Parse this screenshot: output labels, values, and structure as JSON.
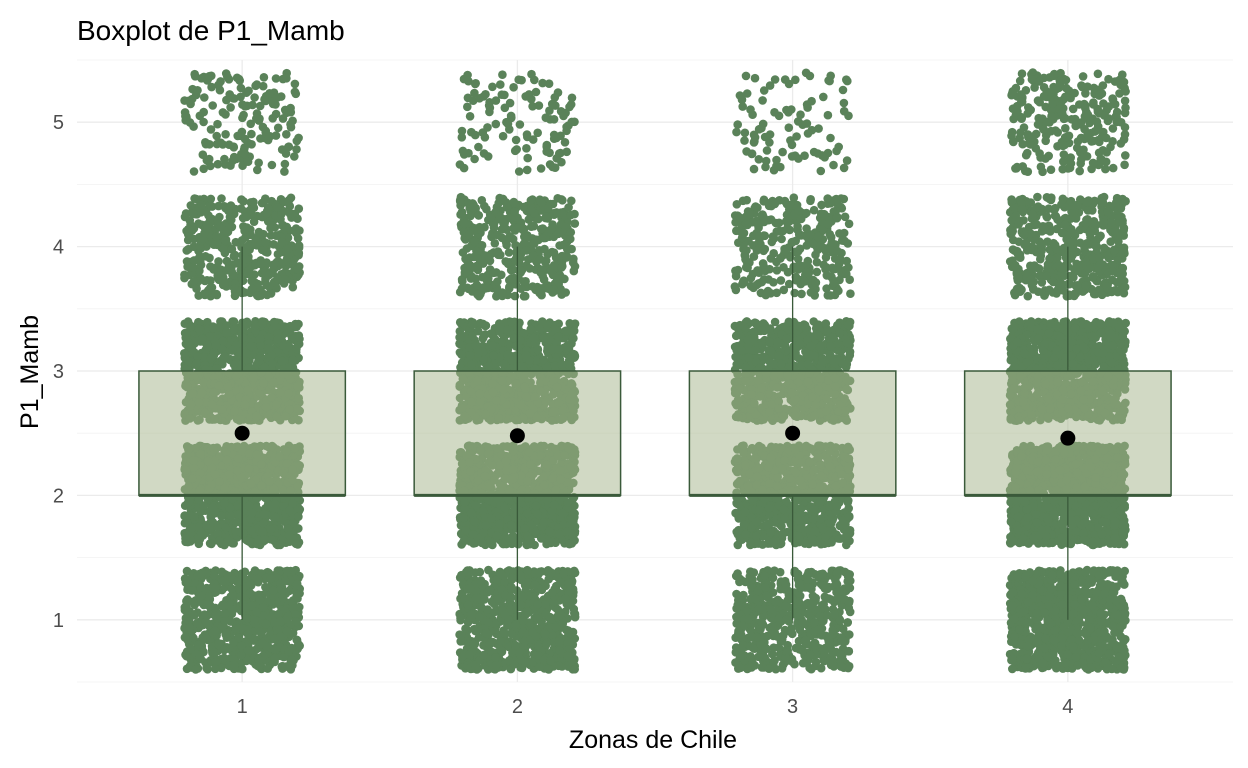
{
  "chart_data": {
    "type": "boxplot",
    "title": "Boxplot de P1_Mamb",
    "xlabel": "Zonas de Chile",
    "ylabel": "P1_Mamb",
    "categories": [
      "1",
      "2",
      "3",
      "4"
    ],
    "yticks": [
      "1",
      "2",
      "3",
      "4",
      "5"
    ],
    "ylim": [
      0.5,
      5.5
    ],
    "grid": true,
    "legend": "none",
    "jitter_levels": [
      1,
      2,
      3,
      4,
      5
    ],
    "boxes": [
      {
        "category": "1",
        "lower_whisker": 1,
        "q1": 2,
        "median": 2,
        "q3": 3,
        "upper_whisker": 4,
        "mean": 2.5,
        "level_counts": [
          700,
          1000,
          900,
          420,
          160
        ]
      },
      {
        "category": "2",
        "lower_whisker": 1,
        "q1": 2,
        "median": 2,
        "q3": 3,
        "upper_whisker": 4,
        "mean": 2.48,
        "level_counts": [
          700,
          1000,
          900,
          420,
          110
        ]
      },
      {
        "category": "3",
        "lower_whisker": 1,
        "q1": 2,
        "median": 2,
        "q3": 3,
        "upper_whisker": 4,
        "mean": 2.5,
        "level_counts": [
          520,
          800,
          760,
          310,
          90
        ]
      },
      {
        "category": "4",
        "lower_whisker": 1,
        "q1": 2,
        "median": 2,
        "q3": 3,
        "upper_whisker": 4,
        "mean": 2.46,
        "level_counts": [
          880,
          1100,
          1000,
          460,
          260
        ]
      }
    ],
    "colors": {
      "points": "#5a8259",
      "box_fill": "#a3b48a",
      "box_fill_opacity": 0.5,
      "box_line": "#3a5a3a",
      "mean_point": "#000000"
    }
  }
}
